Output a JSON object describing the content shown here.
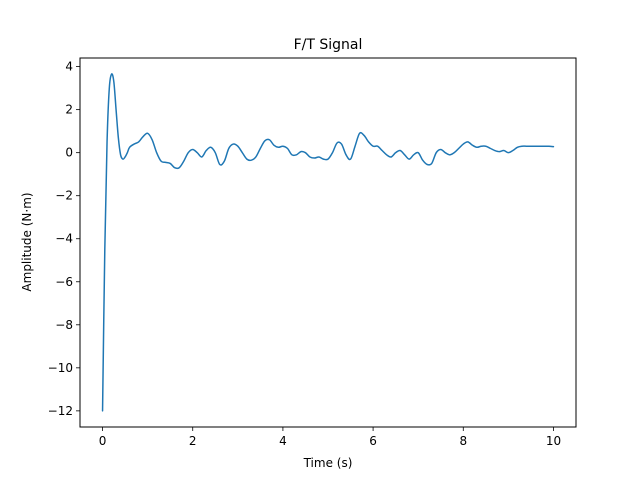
{
  "chart_data": {
    "type": "line",
    "title": "F/T Signal",
    "xlabel": "Time (s)",
    "ylabel": "Amplitude (N·m)",
    "xlim": [
      -0.5,
      10.5
    ],
    "ylim": [
      -12.75,
      4.4
    ],
    "xticks": [
      0,
      2,
      4,
      6,
      8,
      10
    ],
    "yticks": [
      4,
      2,
      0,
      -2,
      -4,
      -6,
      -8,
      -10,
      -12
    ],
    "xtick_labels": [
      "0",
      "2",
      "4",
      "6",
      "8",
      "10"
    ],
    "ytick_labels": [
      "4",
      "2",
      "0",
      "−2",
      "−4",
      "−6",
      "−8",
      "−10",
      "−12"
    ],
    "grid": false,
    "line_color": "#1f77b4",
    "series": [
      {
        "x": [
          0,
          0.05,
          0.1,
          0.15,
          0.2,
          0.25,
          0.3,
          0.35,
          0.4,
          0.45,
          0.5,
          0.55,
          0.6,
          0.7,
          0.8,
          0.9,
          1.0,
          1.1,
          1.2,
          1.3,
          1.4,
          1.5,
          1.6,
          1.7,
          1.8,
          1.9,
          2.0,
          2.1,
          2.2,
          2.3,
          2.4,
          2.5,
          2.6,
          2.7,
          2.8,
          2.9,
          3.0,
          3.1,
          3.2,
          3.3,
          3.4,
          3.5,
          3.6,
          3.7,
          3.8,
          3.9,
          4.0,
          4.1,
          4.2,
          4.3,
          4.4,
          4.5,
          4.6,
          4.7,
          4.8,
          4.9,
          5.0,
          5.1,
          5.2,
          5.3,
          5.4,
          5.5,
          5.6,
          5.7,
          5.8,
          5.9,
          6.0,
          6.1,
          6.2,
          6.3,
          6.4,
          6.5,
          6.6,
          6.7,
          6.8,
          6.9,
          7.0,
          7.1,
          7.2,
          7.3,
          7.4,
          7.5,
          7.6,
          7.7,
          7.8,
          7.9,
          8.0,
          8.1,
          8.2,
          8.3,
          8.4,
          8.5,
          8.6,
          8.7,
          8.8,
          8.9,
          9.0,
          9.1,
          9.2,
          9.3,
          9.4,
          9.5,
          9.6,
          9.7,
          9.8,
          9.9,
          10.0
        ],
        "y": [
          -12.0,
          -4.5,
          0.5,
          3.0,
          3.65,
          3.3,
          2.0,
          0.7,
          -0.1,
          -0.3,
          -0.2,
          0.0,
          0.25,
          0.4,
          0.5,
          0.75,
          0.9,
          0.6,
          0.0,
          -0.4,
          -0.45,
          -0.5,
          -0.7,
          -0.7,
          -0.4,
          0.0,
          0.15,
          0.0,
          -0.2,
          0.1,
          0.25,
          0.0,
          -0.55,
          -0.4,
          0.2,
          0.4,
          0.3,
          0.0,
          -0.3,
          -0.35,
          -0.2,
          0.2,
          0.55,
          0.6,
          0.35,
          0.25,
          0.3,
          0.2,
          -0.1,
          -0.1,
          0.05,
          0.0,
          -0.2,
          -0.25,
          -0.2,
          -0.3,
          -0.3,
          0.0,
          0.45,
          0.4,
          -0.1,
          -0.3,
          0.3,
          0.9,
          0.8,
          0.5,
          0.3,
          0.3,
          0.1,
          -0.1,
          -0.2,
          0.0,
          0.1,
          -0.1,
          -0.3,
          -0.1,
          0.0,
          -0.35,
          -0.55,
          -0.5,
          0.0,
          0.15,
          0.0,
          -0.1,
          0.0,
          0.2,
          0.4,
          0.5,
          0.35,
          0.25,
          0.3,
          0.3,
          0.2,
          0.1,
          0.05,
          0.1,
          0.0,
          0.1,
          0.25,
          0.3,
          0.3,
          0.3,
          0.3,
          0.3,
          0.3,
          0.3,
          0.28
        ]
      }
    ]
  }
}
